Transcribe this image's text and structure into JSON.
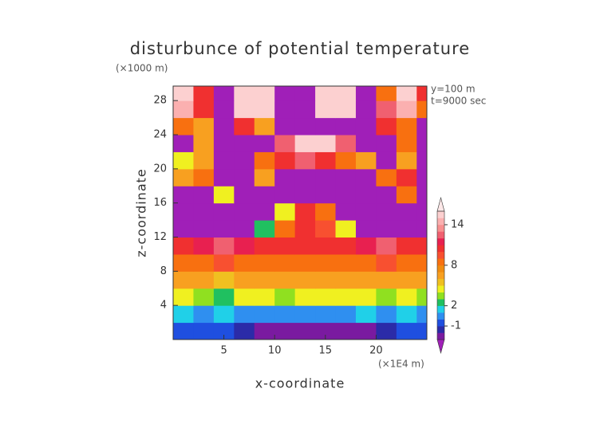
{
  "chart_data": {
    "type": "contour",
    "title": "disturbunce of potential temperature",
    "y_unit": "(×1000 m)",
    "x_unit": "(×1E4 m)",
    "annotations": [
      "y=100 m",
      "t=9000 sec"
    ],
    "x_label": "x-coordinate",
    "y_label": "z-coordinate",
    "xlim": [
      0,
      25
    ],
    "ylim": [
      0,
      29.7
    ],
    "xticks": [
      5,
      10,
      15,
      20
    ],
    "yticks": [
      4,
      8,
      12,
      16,
      20,
      24,
      28
    ],
    "x_edges": [
      0,
      2,
      4,
      6,
      8,
      10,
      12,
      14,
      16,
      18,
      20,
      22,
      24,
      25
    ],
    "z_edges": [
      0,
      2,
      4,
      6,
      8,
      10,
      12,
      14,
      16,
      18,
      20,
      22,
      24,
      26,
      28,
      29.7
    ],
    "values": [
      [
        -1,
        -1,
        -1,
        -2,
        -3,
        -3,
        -3,
        -3,
        -3,
        -3,
        -2,
        -1,
        -1
      ],
      [
        1,
        0,
        1,
        0,
        0,
        0,
        0,
        0,
        0,
        1,
        0,
        1,
        0
      ],
      [
        4,
        3,
        2,
        4,
        4,
        3,
        4,
        4,
        4,
        4,
        3,
        4,
        3
      ],
      [
        6,
        6,
        5,
        6,
        6,
        6,
        6,
        6,
        6,
        6,
        6,
        6,
        6
      ],
      [
        8,
        8,
        9,
        8,
        8,
        8,
        8,
        8,
        8,
        8,
        9,
        8,
        8
      ],
      [
        10,
        11,
        12,
        11,
        10,
        10,
        10,
        10,
        10,
        11,
        12,
        10,
        10
      ],
      [
        -4,
        -4,
        -4,
        -4,
        2,
        8,
        10,
        9,
        4,
        -4,
        -4,
        -4,
        -4
      ],
      [
        -4,
        -4,
        -4,
        -4,
        -4,
        4,
        10,
        8,
        -4,
        -4,
        -4,
        -4,
        -4
      ],
      [
        -4,
        -4,
        4,
        -4,
        -4,
        -4,
        -4,
        -4,
        -4,
        -4,
        -4,
        8,
        -4
      ],
      [
        6,
        8,
        -4,
        -4,
        6,
        -4,
        -4,
        -4,
        -4,
        -4,
        8,
        10,
        -4
      ],
      [
        4,
        6,
        -4,
        -4,
        8,
        10,
        12,
        10,
        8,
        6,
        -4,
        6,
        -4
      ],
      [
        -4,
        6,
        -4,
        -4,
        -4,
        12,
        15,
        15,
        12,
        -4,
        -4,
        8,
        -4
      ],
      [
        8,
        6,
        -4,
        10,
        6,
        -4,
        -4,
        -4,
        -4,
        -4,
        10,
        8,
        -4
      ],
      [
        14,
        10,
        -4,
        15,
        15,
        -4,
        -4,
        15,
        15,
        -4,
        12,
        14,
        8
      ],
      [
        15,
        10,
        -4,
        15,
        15,
        -4,
        -4,
        15,
        15,
        -4,
        8,
        15,
        10
      ]
    ],
    "levels": [
      -3,
      -2,
      -1,
      0,
      1,
      2,
      3,
      4,
      5,
      6,
      7,
      8,
      9,
      10,
      11,
      12,
      13,
      14,
      15,
      16
    ],
    "colors": [
      "#a01fb8",
      "#7a1aa0",
      "#2b2ba8",
      "#1f4fe0",
      "#2f8ff0",
      "#20d0e8",
      "#20c060",
      "#90e020",
      "#f0f020",
      "#f0c020",
      "#f8a020",
      "#f08c10",
      "#f87010",
      "#f85030",
      "#f03030",
      "#e82050",
      "#f06070",
      "#f89090",
      "#fbb0b0",
      "#fcd0d0",
      "#fde8e8"
    ],
    "colorbar_ticks": [
      -1,
      2,
      8,
      14
    ]
  }
}
